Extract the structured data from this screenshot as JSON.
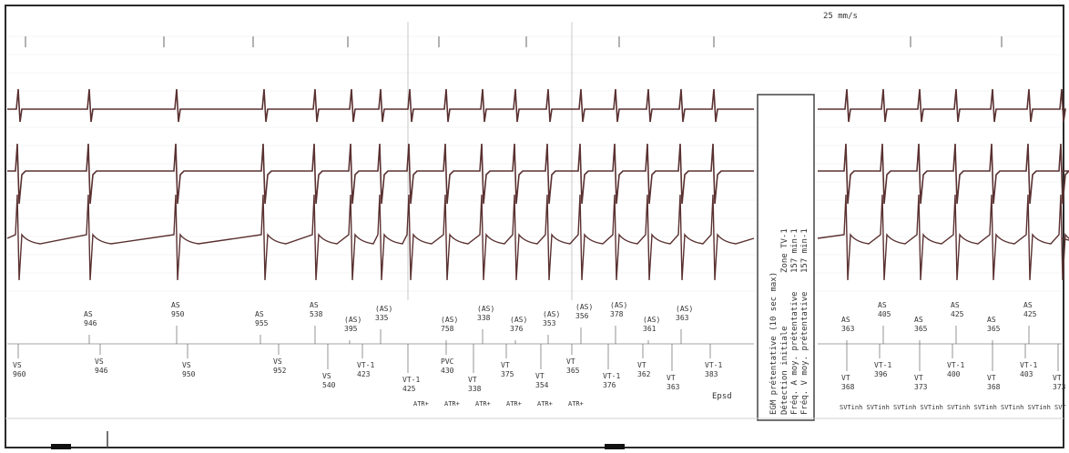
{
  "speed_label": "25 mm/s",
  "atrial_markers": [
    {
      "label": "AS",
      "value": "946"
    },
    {
      "label": "AS",
      "value": "950"
    },
    {
      "label": "AS",
      "value": "955"
    },
    {
      "label": "AS",
      "value": "538"
    },
    {
      "label": "(AS)",
      "value": "395"
    },
    {
      "label": "(AS)",
      "value": "335"
    },
    {
      "label": "(AS)",
      "value": "758"
    },
    {
      "label": "(AS)",
      "value": "338"
    },
    {
      "label": "(AS)",
      "value": "376"
    },
    {
      "label": "(AS)",
      "value": "353"
    },
    {
      "label": "(AS)",
      "value": "356"
    },
    {
      "label": "(AS)",
      "value": "378"
    },
    {
      "label": "(AS)",
      "value": "361"
    },
    {
      "label": "(AS)",
      "value": "363"
    }
  ],
  "ventricular_markers": [
    {
      "label": "VS",
      "value": "960"
    },
    {
      "label": "VS",
      "value": "946"
    },
    {
      "label": "VS",
      "value": "950"
    },
    {
      "label": "VS",
      "value": "952"
    },
    {
      "label": "VS",
      "value": "540"
    },
    {
      "label": "VT-1",
      "value": "423"
    },
    {
      "label": "VT-1",
      "value": "425"
    },
    {
      "label": "PVC",
      "value": "430"
    },
    {
      "label": "VT",
      "value": "338"
    },
    {
      "label": "VT",
      "value": "375"
    },
    {
      "label": "VT",
      "value": "354"
    },
    {
      "label": "VT",
      "value": "365"
    },
    {
      "label": "VT-1",
      "value": "376"
    },
    {
      "label": "VT",
      "value": "362"
    },
    {
      "label": "VT",
      "value": "363"
    },
    {
      "label": "VT-1",
      "value": "383"
    }
  ],
  "episode_label": "Epsd",
  "atr_labels": [
    "ATR+",
    "ATR+",
    "ATR+",
    "ATR+",
    "ATR+",
    "ATR+"
  ],
  "info_box": {
    "title": "EGM prétentative (10 sec max)",
    "line1": "Détection initiale",
    "line2": "Fréq. A moy. prétentative",
    "line3": "Fréq. V moy. prétentative",
    "zone": "Zone TV-1",
    "rate_a": "157 min-1",
    "rate_v": "157 min-1"
  },
  "right_atrial_markers": [
    {
      "label": "AS",
      "value": "363"
    },
    {
      "label": "AS",
      "value": "405"
    },
    {
      "label": "AS",
      "value": "365"
    },
    {
      "label": "AS",
      "value": "425"
    },
    {
      "label": "AS",
      "value": "365"
    },
    {
      "label": "AS",
      "value": "425"
    }
  ],
  "right_ventricular_markers": [
    {
      "label": "VT",
      "value": "368"
    },
    {
      "label": "VT-1",
      "value": "396"
    },
    {
      "label": "VT",
      "value": "373"
    },
    {
      "label": "VT-1",
      "value": "400"
    },
    {
      "label": "VT",
      "value": "368"
    },
    {
      "label": "VT-1",
      "value": "403"
    },
    {
      "label": "VT",
      "value": "373"
    }
  ],
  "svt_inhibit": "SVTinh SVTinh SVTinh SVTinh SVTinh SVTinh SVTinh SVTinh SVT",
  "colors": {
    "trace": "#5a3030",
    "grid": "#d8d8d8",
    "frame": "#2a2a2a",
    "text": "#333333"
  }
}
